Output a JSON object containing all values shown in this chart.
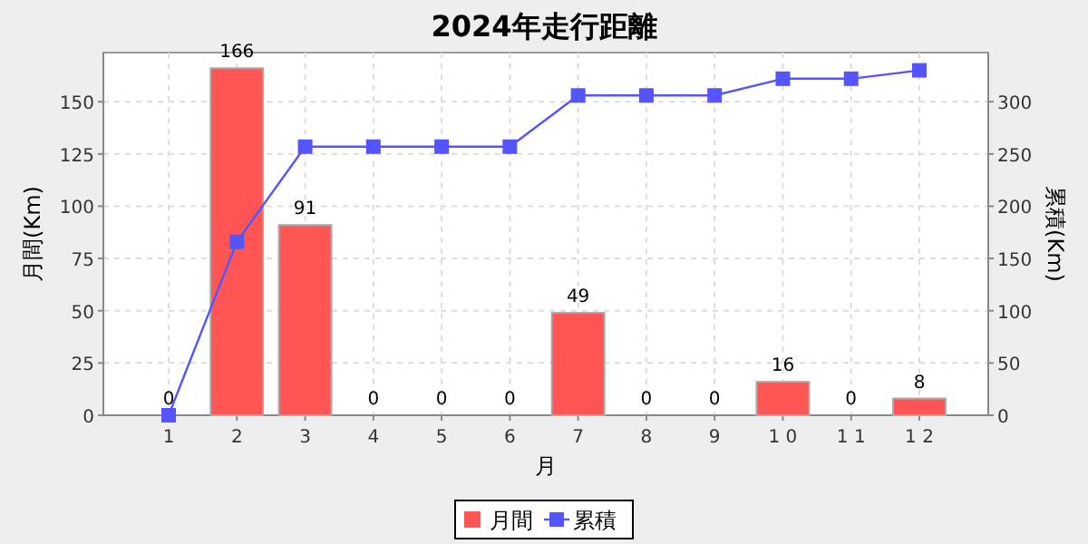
{
  "chart_data": {
    "type": "bar",
    "title": "2024年走行距離",
    "xlabel": "月",
    "ylabel": "月間(Km)",
    "y2label": "累積(Km)",
    "categories": [
      "1",
      "2",
      "3",
      "4",
      "5",
      "6",
      "7",
      "8",
      "9",
      "1 0",
      "1 1",
      "1 2"
    ],
    "series": [
      {
        "name": "月間",
        "color": "#ff5555",
        "values": [
          0,
          166,
          91,
          0,
          0,
          0,
          49,
          0,
          0,
          16,
          0,
          8
        ],
        "value_labels": [
          "0",
          "166",
          "91",
          "0",
          "0",
          "0",
          "49",
          "0",
          "0",
          "16",
          "0",
          "8"
        ]
      },
      {
        "name": "累積",
        "type": "line",
        "axis": "y2",
        "color": "#5555ff",
        "marker": "square",
        "values": [
          0,
          166,
          257,
          257,
          257,
          257,
          306,
          306,
          306,
          322,
          322,
          330
        ]
      }
    ],
    "ylim": [
      0,
      173.5
    ],
    "yticks": [
      0,
      25,
      50,
      75,
      100,
      125,
      150
    ],
    "y2lim": [
      0,
      347
    ],
    "y2ticks": [
      0,
      50,
      100,
      150,
      200,
      250,
      300
    ],
    "grid": true,
    "legend": "bottom"
  }
}
